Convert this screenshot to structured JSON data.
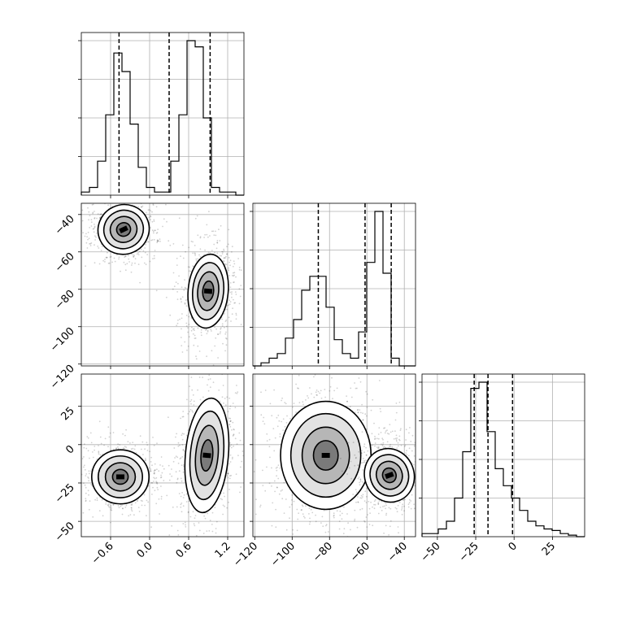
{
  "chart_data": {
    "type": "corner",
    "parameters": [
      {
        "range": [
          -1.05,
          1.45
        ],
        "ticks": [
          -0.6,
          0.0,
          0.6,
          1.2
        ],
        "tick_labels": [
          "−0.6",
          "0.0",
          "0.6",
          "1.2"
        ],
        "quantiles": [
          -0.47,
          0.3,
          0.93
        ]
      },
      {
        "range": [
          -121,
          -34
        ],
        "ticks": [
          -120,
          -100,
          -80,
          -60,
          -40
        ],
        "tick_labels": [
          "−120",
          "−100",
          "−80",
          "−60",
          "−40"
        ],
        "quantiles": [
          -86,
          -61,
          -47
        ]
      },
      {
        "range": [
          -60,
          46
        ],
        "ticks": [
          -50,
          -25,
          0,
          25
        ],
        "tick_labels": [
          "−50",
          "−25",
          "0",
          "25"
        ],
        "quantiles": [
          -26,
          -17,
          -1
        ]
      }
    ],
    "histograms": [
      {
        "param": 0,
        "edges_start": -1.05,
        "bin_width": 0.125,
        "counts": [
          0.02,
          0.05,
          0.22,
          0.52,
          0.92,
          0.8,
          0.46,
          0.18,
          0.05,
          0.02,
          0.02,
          0.22,
          0.52,
          1.0,
          0.96,
          0.5,
          0.05,
          0.02,
          0.02,
          0.0
        ]
      },
      {
        "param": 1,
        "edges_start": -121,
        "bin_width": 4.35,
        "counts": [
          0.0,
          0.02,
          0.05,
          0.08,
          0.18,
          0.3,
          0.49,
          0.58,
          0.58,
          0.38,
          0.17,
          0.08,
          0.05,
          0.22,
          0.67,
          1.0,
          0.6,
          0.05,
          0.0,
          0.0
        ]
      },
      {
        "param": 2,
        "edges_start": -60,
        "bin_width": 5.3,
        "counts": [
          0.02,
          0.02,
          0.05,
          0.1,
          0.25,
          0.55,
          0.96,
          1.0,
          0.68,
          0.44,
          0.33,
          0.25,
          0.17,
          0.1,
          0.07,
          0.05,
          0.04,
          0.02,
          0.01,
          0.0
        ]
      }
    ],
    "clusters": [
      {
        "x": 0,
        "y": 1,
        "center": [
          -0.4,
          -48
        ],
        "spread": [
          0.18,
          6
        ],
        "rotation": -25,
        "n": 700
      },
      {
        "x": 0,
        "y": 1,
        "center": [
          0.9,
          -81
        ],
        "spread": [
          0.14,
          9
        ],
        "rotation": 5,
        "n": 700
      },
      {
        "x": 0,
        "y": 2,
        "center": [
          -0.45,
          -21
        ],
        "spread": [
          0.2,
          8
        ],
        "rotation": 0,
        "n": 700
      },
      {
        "x": 0,
        "y": 2,
        "center": [
          0.88,
          -7
        ],
        "spread": [
          0.15,
          17
        ],
        "rotation": 5,
        "n": 700
      },
      {
        "x": 1,
        "y": 2,
        "center": [
          -82,
          -7
        ],
        "spread": [
          11,
          16
        ],
        "rotation": 0,
        "n": 900
      },
      {
        "x": 1,
        "y": 2,
        "center": [
          -48,
          -20
        ],
        "spread": [
          6,
          8
        ],
        "rotation": -20,
        "n": 700
      }
    ]
  }
}
